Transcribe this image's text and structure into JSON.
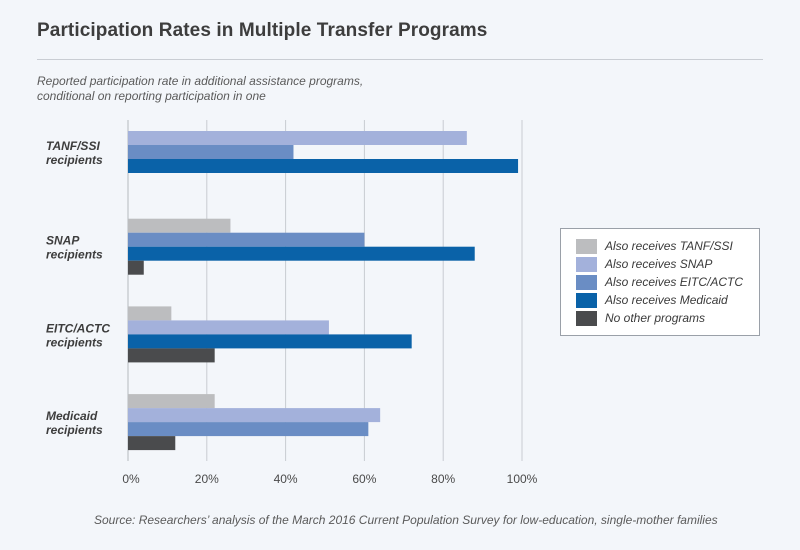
{
  "title": "Participation Rates in Multiple Transfer Programs",
  "subtitle": "Reported participation rate in additional assistance programs, conditional on reporting participation in one",
  "source": "Source: Researchers’ analysis of the March 2016 Current Population Survey for low-education, single-mother families",
  "colors": {
    "Also receives TANF/SSI": "#bcbdbf",
    "Also receives SNAP": "#a3b1db",
    "Also receives EITC/ACTC": "#6a8dc4",
    "Also receives Medicaid": "#0a62a8",
    "No other programs": "#4a4b4d"
  },
  "chart_data": {
    "type": "bar",
    "orientation": "horizontal",
    "categories": [
      {
        "line1": "TANF/SSI",
        "line2": "recipients"
      },
      {
        "line1": "SNAP",
        "line2": "recipients"
      },
      {
        "line1": "EITC/ACTC",
        "line2": "recipients"
      },
      {
        "line1": "Medicaid",
        "line2": "recipients"
      }
    ],
    "series": [
      {
        "name": "Also receives TANF/SSI",
        "values": [
          null,
          26,
          11,
          22
        ]
      },
      {
        "name": "Also receives SNAP",
        "values": [
          86,
          null,
          51,
          64
        ]
      },
      {
        "name": "Also receives EITC/ACTC",
        "values": [
          42,
          60,
          null,
          61
        ]
      },
      {
        "name": "Also receives Medicaid",
        "values": [
          99,
          88,
          72,
          null
        ]
      },
      {
        "name": "No other programs",
        "values": [
          null,
          4,
          22,
          12
        ]
      }
    ],
    "xlim": [
      0,
      100
    ],
    "xticks": [
      0,
      20,
      40,
      60,
      80,
      100
    ],
    "xtick_labels": [
      "0%",
      "20%",
      "40%",
      "60%",
      "80%",
      "100%"
    ],
    "grid": true,
    "legend_position": "right"
  }
}
